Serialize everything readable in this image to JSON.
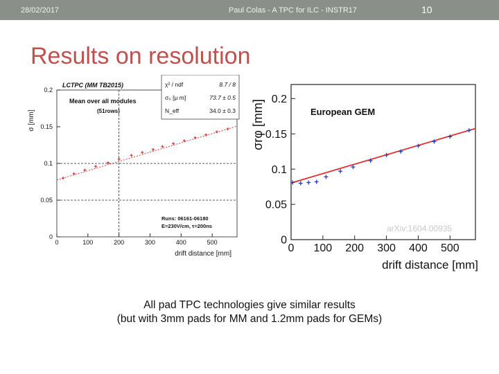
{
  "header": {
    "date": "28/02/2017",
    "title": "Paul Colas - A TPC for ILC - INSTR17",
    "slide_number": "10"
  },
  "slide_title": "Results on resolution",
  "caption": {
    "line1": "All pad TPC technologies give similar results",
    "line2": "(but with 3mm pads for MM and 1.2mm pads for GEMs)"
  },
  "chart_data": [
    {
      "type": "scatter",
      "title": "LCTPC (MM TB2015)",
      "subtitle": "Mean over all modules",
      "subtitle2": "(51rows)",
      "ylabel": "σ [mm]",
      "xlabel": "drift distance [mm]",
      "xlim": [
        0,
        580
      ],
      "ylim": [
        0,
        0.2
      ],
      "x_ticks": [
        "0",
        "100",
        "200",
        "300",
        "400",
        "500"
      ],
      "y_ticks": [
        "0",
        "0.05",
        "0.1",
        "0.15",
        "0.2"
      ],
      "fit_box": {
        "labels": [
          "χ² / ndf",
          "σ₀ [μ m]",
          "N_eff"
        ],
        "values": [
          "8.7 / 8",
          "73.7 ± 0.5",
          "34.0 ± 0.3"
        ]
      },
      "annotations": [
        "Runs: 06161-06180",
        "E=230V/cm, τ=200ns"
      ],
      "series": [
        {
          "x": [
            20,
            55,
            90,
            125,
            165,
            200,
            240,
            275,
            310,
            340,
            375,
            410,
            445,
            480,
            515,
            550
          ],
          "y": [
            0.08,
            0.086,
            0.091,
            0.096,
            0.101,
            0.106,
            0.111,
            0.115,
            0.119,
            0.123,
            0.127,
            0.131,
            0.135,
            0.139,
            0.143,
            0.147
          ]
        }
      ],
      "color": "#d04040"
    },
    {
      "type": "scatter",
      "title": "European GEM",
      "ylabel": "σrφ [mm]",
      "xlabel": "drift distance [mm]",
      "xlim": [
        0,
        580
      ],
      "ylim": [
        0,
        0.22
      ],
      "x_ticks": [
        "0",
        "100",
        "200",
        "300",
        "400",
        "500"
      ],
      "y_ticks": [
        "0",
        "0.05",
        "0.1",
        "0.15",
        "0.2"
      ],
      "watermark": "arXiv:1604.00935",
      "series": [
        {
          "x": [
            5,
            30,
            55,
            80,
            110,
            155,
            195,
            250,
            300,
            345,
            400,
            450,
            500,
            560
          ],
          "y": [
            0.081,
            0.08,
            0.081,
            0.082,
            0.089,
            0.097,
            0.103,
            0.112,
            0.12,
            0.125,
            0.133,
            0.139,
            0.146,
            0.155
          ]
        }
      ],
      "color": "#2040b0",
      "fit_color": "#e03030"
    }
  ]
}
